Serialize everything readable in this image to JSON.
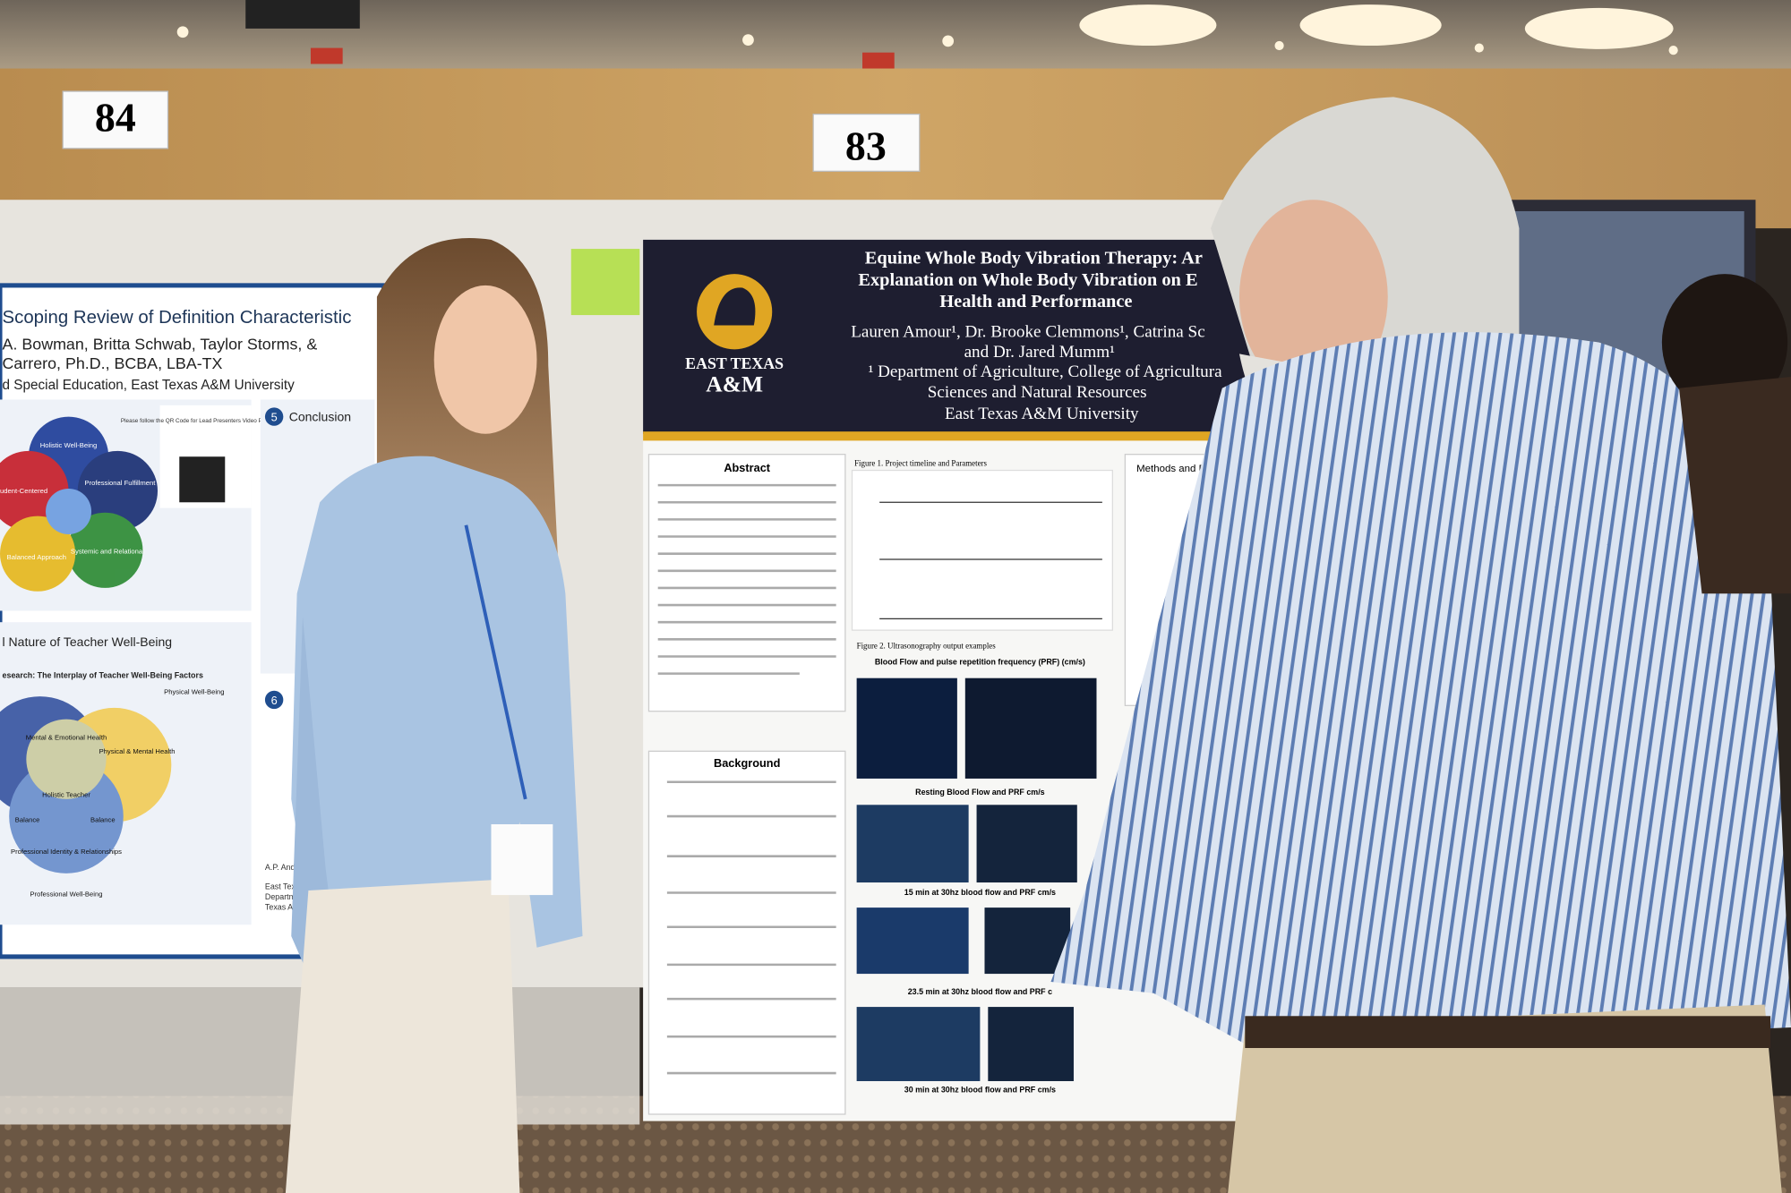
{
  "signs": [
    "84",
    "83"
  ],
  "left_poster": {
    "title": "Scoping Review of  Definition Characteristic",
    "authors": [
      "A. Bowman, Britta Schwab, Taylor Storms, &",
      "Carrero, Ph.D., BCBA, LBA-TX",
      "d Special Education, East Texas A&M University"
    ],
    "section_number": "5",
    "section_title": "Conclusion",
    "section6_number": "6",
    "qr_note": "Please follow the QR Code for Lead Presenters Video Presentation",
    "venn1": [
      "Holistic Well-Being",
      "Professional Fulfillment",
      "Student-Centered",
      "Systemic and Relational",
      "Balanced Approach"
    ],
    "subtitle": "l Nature of Teacher Well-Being",
    "research": "esearch: The Interplay of Teacher Well-Being Factors",
    "venn2": [
      "Physical Well-Being",
      "Mental & Emotional Health",
      "Physical & Mental Health",
      "Holistic Teacher",
      "Balance",
      "Balance",
      "Professional Identity & Relationships",
      "Professional Well-Being"
    ],
    "footer": [
      "A.P. Anders",
      "East Texas",
      "Departm",
      "Texas A&"
    ]
  },
  "right_poster": {
    "title": [
      "Equine Whole Body Vibration Therapy: Ar",
      "Explanation on Whole Body Vibration on E",
      "Health and Performance"
    ],
    "authors": [
      "Lauren Amour¹, Dr. Brooke Clemmons¹, Catrina Sc",
      "and Dr. Jared Mumm¹",
      "¹ Department of Agriculture, College of Agricultura",
      "Sciences and Natural Resources",
      "East Texas A&M University"
    ],
    "logo": [
      "EAST TEXAS",
      "A&M"
    ],
    "abstract": "Abstract",
    "background": "Background",
    "methods": "Methods and Pr",
    "figure1": "Figure 1. Project timeline and Parameters",
    "figure2": "Figure 2. Ultrasonography output examples",
    "figure2_header": "Blood Flow and pulse repetition frequency (PRF) (cm/s)",
    "captions": [
      "Resting Blood Flow and PRF cm/s",
      "15 min at 30hz blood flow and PRF cm/s",
      "23.5 min at 30hz blood flow and PRF c",
      "30 min at 30hz blood flow and PRF cm/s"
    ]
  }
}
